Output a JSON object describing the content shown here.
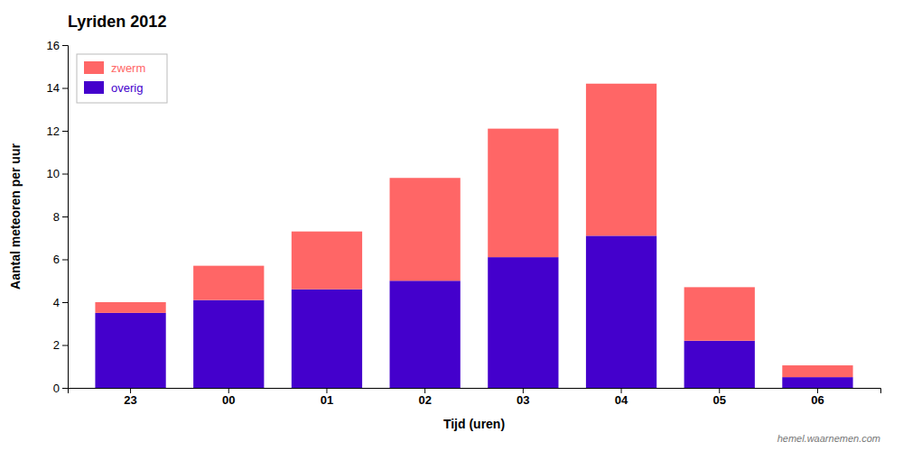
{
  "chart_data": {
    "type": "bar",
    "stacked": true,
    "title": "Lyriden 2012",
    "xlabel": "Tijd (uren)",
    "ylabel": "Aantal meteoren per uur",
    "categories": [
      "23",
      "00",
      "01",
      "02",
      "03",
      "04",
      "05",
      "06"
    ],
    "series": [
      {
        "name": "overig",
        "color": "#4400cc",
        "values": [
          3.5,
          4.1,
          4.6,
          5.0,
          6.1,
          7.1,
          2.2,
          0.5
        ]
      },
      {
        "name": "zwerm",
        "color": "#ff6666",
        "values": [
          0.5,
          1.6,
          2.7,
          4.8,
          6.0,
          7.1,
          2.5,
          0.55
        ]
      }
    ],
    "ylim": [
      0,
      16
    ],
    "yticks": [
      0,
      2,
      4,
      6,
      8,
      10,
      12,
      14,
      16
    ],
    "grid": false,
    "legend": "upper-left",
    "annotations": [
      "hemel.waarnemen.com"
    ]
  }
}
